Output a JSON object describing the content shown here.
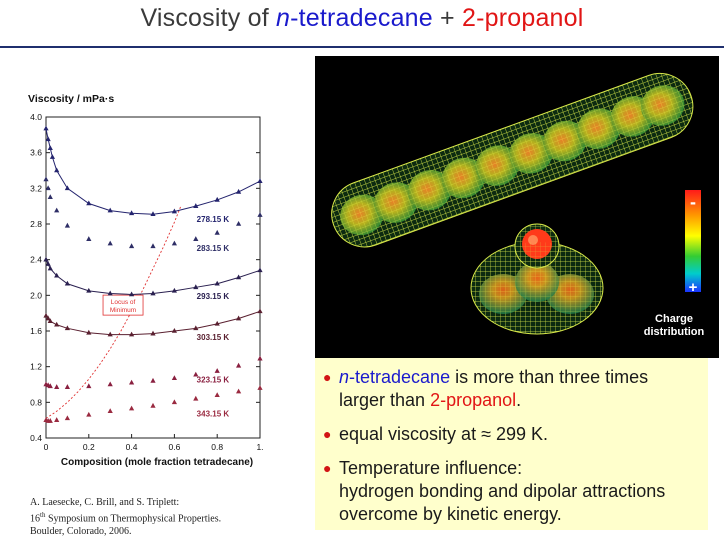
{
  "title": {
    "prefix": "Viscosity of ",
    "italic_n": "n",
    "compound1": "-tetradecane",
    "plus": " + ",
    "compound2": "2-propanol"
  },
  "colors": {
    "title_blue": "#1a1acc",
    "title_red": "#e11515",
    "note_background": "#ffffcc",
    "bullet": "#d21414"
  },
  "chart_data": {
    "type": "scatter",
    "title": "Viscosity / mPa·s",
    "xlabel": "Composition (mole fraction tetradecane)",
    "ylabel": "",
    "xlim": [
      0,
      1
    ],
    "ylim": [
      0.4,
      4.0
    ],
    "x_ticks": [
      "0",
      "0.2",
      "0.4",
      "0.6",
      "0.8",
      "1."
    ],
    "y_ticks": [
      "0.4",
      "0.8",
      "1.2",
      "1.6",
      "2.0",
      "2.4",
      "2.8",
      "3.2",
      "3.6",
      "4.0"
    ],
    "series": [
      {
        "name": "278.15 K",
        "color": "#24246e",
        "fit_line": true,
        "x": [
          0,
          0.01,
          0.02,
          0.03,
          0.05,
          0.1,
          0.2,
          0.3,
          0.4,
          0.5,
          0.6,
          0.7,
          0.8,
          0.9,
          1.0
        ],
        "y": [
          3.87,
          3.75,
          3.65,
          3.55,
          3.4,
          3.2,
          3.03,
          2.95,
          2.92,
          2.91,
          2.94,
          3.0,
          3.07,
          3.16,
          3.28
        ]
      },
      {
        "name": "283.15 K",
        "color": "#2e2e66",
        "fit_line": false,
        "x": [
          0,
          0.01,
          0.02,
          0.05,
          0.1,
          0.2,
          0.3,
          0.4,
          0.5,
          0.6,
          0.7,
          0.8,
          0.9,
          1.0
        ],
        "y": [
          3.3,
          3.2,
          3.1,
          2.95,
          2.78,
          2.63,
          2.58,
          2.55,
          2.55,
          2.58,
          2.63,
          2.7,
          2.8,
          2.9
        ]
      },
      {
        "name": "293.15 K",
        "color": "#2a2050",
        "fit_line": true,
        "x": [
          0,
          0.01,
          0.02,
          0.05,
          0.1,
          0.2,
          0.3,
          0.4,
          0.5,
          0.6,
          0.7,
          0.8,
          0.9,
          1.0
        ],
        "y": [
          2.4,
          2.35,
          2.3,
          2.22,
          2.13,
          2.05,
          2.02,
          2.01,
          2.02,
          2.05,
          2.09,
          2.13,
          2.2,
          2.28
        ]
      },
      {
        "name": "303.15 K",
        "color": "#5a2030",
        "fit_line": true,
        "x": [
          0,
          0.01,
          0.02,
          0.05,
          0.1,
          0.2,
          0.3,
          0.4,
          0.5,
          0.6,
          0.7,
          0.8,
          0.9,
          1.0
        ],
        "y": [
          1.77,
          1.74,
          1.71,
          1.67,
          1.63,
          1.58,
          1.56,
          1.56,
          1.57,
          1.6,
          1.63,
          1.68,
          1.74,
          1.82
        ]
      },
      {
        "name": "323.15 K",
        "color": "#8a2040",
        "fit_line": false,
        "x": [
          0,
          0.01,
          0.02,
          0.05,
          0.1,
          0.2,
          0.3,
          0.4,
          0.5,
          0.6,
          0.7,
          0.8,
          0.9,
          1.0
        ],
        "y": [
          1.0,
          0.99,
          0.98,
          0.97,
          0.97,
          0.98,
          1.0,
          1.02,
          1.04,
          1.07,
          1.11,
          1.15,
          1.21,
          1.29
        ]
      },
      {
        "name": "343.15 K",
        "color": "#9a2a40",
        "fit_line": false,
        "x": [
          0,
          0.01,
          0.02,
          0.05,
          0.1,
          0.2,
          0.3,
          0.4,
          0.5,
          0.6,
          0.7,
          0.8,
          0.9,
          1.0
        ],
        "y": [
          0.6,
          0.59,
          0.59,
          0.6,
          0.62,
          0.66,
          0.7,
          0.73,
          0.76,
          0.8,
          0.84,
          0.88,
          0.92,
          0.96
        ]
      }
    ],
    "locus": {
      "label_line1": "Locus of",
      "label_line2": "Minimum",
      "color": "#e03030",
      "x": [
        0.0,
        0.05,
        0.1,
        0.15,
        0.2,
        0.25,
        0.3,
        0.35,
        0.4,
        0.45,
        0.5,
        0.55,
        0.6,
        0.63
      ],
      "y": [
        0.62,
        0.7,
        0.8,
        0.92,
        1.06,
        1.22,
        1.4,
        1.6,
        1.82,
        2.05,
        2.3,
        2.55,
        2.82,
        3.0
      ]
    }
  },
  "citation": {
    "line1": "A. Laesecke, C. Brill, and S. Triplett:",
    "line2_prefix": "16",
    "line2_sup": "th",
    "line2_rest": " Symposium on Thermophysical Properties.",
    "line3": "Boulder, Colorado, 2006."
  },
  "charge_bar": {
    "minus": "-",
    "plus": "+",
    "label_line1": "Charge",
    "label_line2": "distribution",
    "gradient": [
      "#ff1a1a",
      "#ff9900",
      "#ffff00",
      "#33cc33",
      "#00cccc",
      "#1a33ff"
    ]
  },
  "notes": [
    {
      "italic": "n",
      "blue": "-tetradecane",
      "mid": " is more than three times larger than ",
      "red": "2-propanol",
      "end": "."
    },
    {
      "text": "equal viscosity at ≈ 299 K."
    },
    {
      "line1": "Temperature influence:",
      "line2": "hydrogen bonding and dipolar attractions overcome by kinetic energy."
    }
  ]
}
